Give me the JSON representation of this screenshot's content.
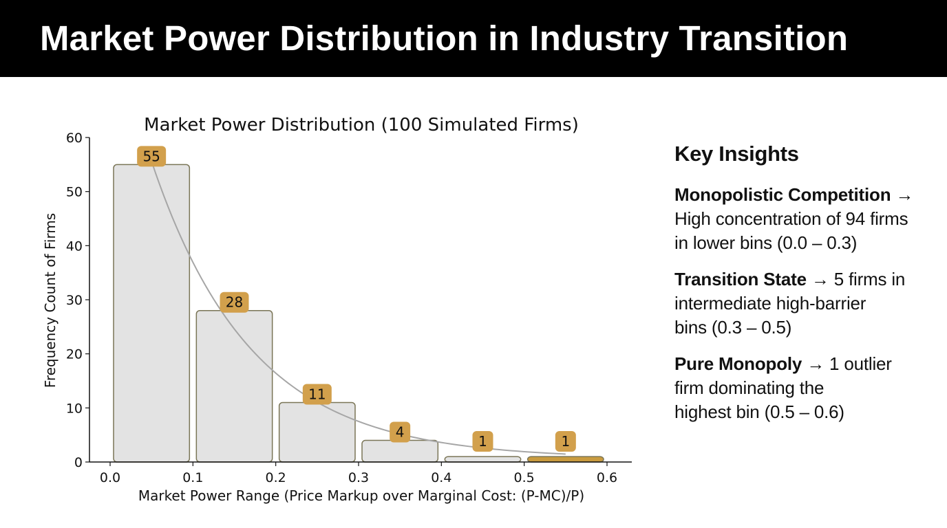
{
  "header": {
    "title": "Market Power Distribution in Industry Transition"
  },
  "chart_data": {
    "type": "bar",
    "title": "Market Power Distribution (100 Simulated Firms)",
    "xlabel": "Market Power Range (Price Markup over Marginal Cost: (P-MC)/P)",
    "ylabel": "Frequency Count of Firms",
    "bin_edges": [
      0.0,
      0.1,
      0.2,
      0.3,
      0.4,
      0.5,
      0.6
    ],
    "categories": [
      "0.0–0.1",
      "0.1–0.2",
      "0.2–0.3",
      "0.3–0.4",
      "0.4–0.5",
      "0.5–0.6"
    ],
    "values": [
      55,
      28,
      11,
      4,
      1,
      1
    ],
    "data_labels": [
      "55",
      "28",
      "11",
      "4",
      "1",
      "1"
    ],
    "trend_line": {
      "type": "exponential decay",
      "x": [
        0.05,
        0.15,
        0.25,
        0.35,
        0.45,
        0.55
      ],
      "y": [
        55,
        28,
        11,
        4,
        1,
        1
      ]
    },
    "xlim": [
      0.0,
      0.6
    ],
    "ylim": [
      0,
      60
    ],
    "x_ticks": [
      "0.0",
      "0.1",
      "0.2",
      "0.3",
      "0.4",
      "0.5",
      "0.6"
    ],
    "y_ticks": [
      "0",
      "10",
      "20",
      "30",
      "40",
      "50",
      "60"
    ],
    "grid": false,
    "colors": {
      "bar_fill": "#e3e3e3",
      "bar_stroke": "#7a7556",
      "highlight_bar": "#c99b3f",
      "label_badge": "#d2a04c",
      "trend_line": "#a6a6a6"
    }
  },
  "insights": {
    "heading": "Key Insights",
    "items": [
      {
        "label": "Monopolistic Competition",
        "arrow": " →",
        "body": "High concentration of 94 firms\nin lower bins (0.0 – 0.3)"
      },
      {
        "label": "Transition State",
        "arrow": " → 5 firms in",
        "body": "intermediate high-barrier\nbins (0.3 – 0.5)"
      },
      {
        "label": "Pure Monopoly",
        "arrow": " → 1 outlier",
        "body": "firm dominating the\nhighest bin (0.5 – 0.6)"
      }
    ]
  }
}
